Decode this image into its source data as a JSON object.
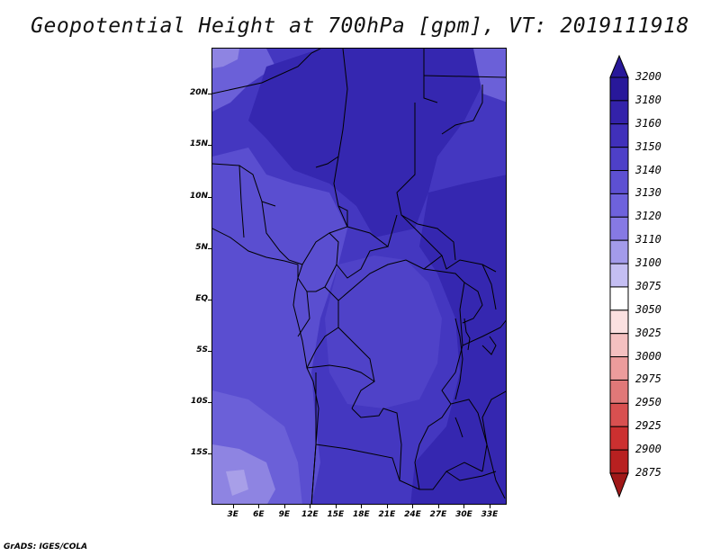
{
  "title": "Geopotential Height at 700hPa [gpm], VT: 2019111918",
  "credit": "GrADS: IGES/COLA",
  "map": {
    "lat_labels": [
      "20N",
      "15N",
      "10N",
      "5N",
      "EQ",
      "5S",
      "10S",
      "15S"
    ],
    "lat_values": [
      20,
      15,
      10,
      5,
      0,
      -5,
      -10,
      -15
    ],
    "lon_labels": [
      "3E",
      "6E",
      "9E",
      "12E",
      "15E",
      "18E",
      "21E",
      "24E",
      "27E",
      "30E",
      "33E"
    ],
    "lon_values": [
      3,
      6,
      9,
      12,
      15,
      18,
      21,
      24,
      27,
      30,
      33
    ],
    "lon_range": [
      0.5,
      35
    ],
    "lat_range": [
      -20,
      24.5
    ]
  },
  "colorbar": {
    "levels": [
      "3200",
      "3180",
      "3160",
      "3150",
      "3140",
      "3130",
      "3120",
      "3110",
      "3100",
      "3075",
      "3050",
      "3025",
      "3000",
      "2975",
      "2950",
      "2925",
      "2900",
      "2875"
    ],
    "colors": [
      "#28189a",
      "#3322aa",
      "#4030ba",
      "#4e40c8",
      "#5d50d2",
      "#6e62dc",
      "#8679e4",
      "#a39bea",
      "#c4bef2",
      "#ffffff",
      "#fbe0e0",
      "#f4c0c0",
      "#ec9c9c",
      "#e07878",
      "#d85050",
      "#cc3030",
      "#b82020",
      "#a01818"
    ]
  },
  "fields": {
    "deep": "#3527b0",
    "mid": "#4437c0",
    "mid2": "#4f42c8",
    "light": "#5a4ed0",
    "lighter": "#6b60d8",
    "lightest": "#8e84e2",
    "palest": "#a89fe8"
  }
}
